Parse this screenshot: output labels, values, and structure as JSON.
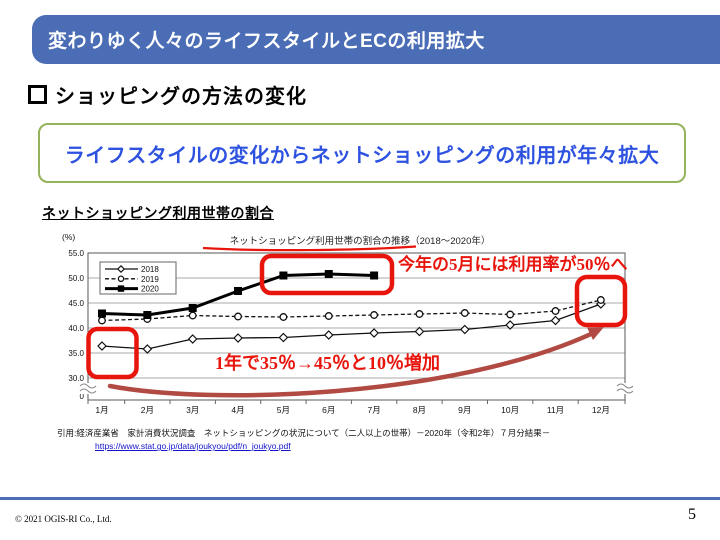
{
  "header": {
    "title": "変わりゆく人々のライフスタイルとECの利用拡大"
  },
  "heading": {
    "text": "ショッピングの方法の変化"
  },
  "callout": {
    "text": "ライフスタイルの変化からネットショッピングの利用が年々拡大"
  },
  "chart_section": {
    "subtitle": "ネットショッピング利用世帯の割合"
  },
  "chart_data": {
    "type": "line",
    "title": "ネットショッピング利用世帯の割合の推移（2018～2020年）",
    "unit_label": "(%)",
    "categories": [
      "1月",
      "2月",
      "3月",
      "4月",
      "5月",
      "6月",
      "7月",
      "8月",
      "9月",
      "10月",
      "11月",
      "12月"
    ],
    "series": [
      {
        "name": "2018",
        "line": "solid",
        "marker": "open-diamond",
        "values": [
          36.4,
          35.8,
          37.8,
          38.0,
          38.1,
          38.6,
          39.0,
          39.3,
          39.7,
          40.6,
          41.5,
          44.8
        ]
      },
      {
        "name": "2019",
        "line": "dashed",
        "marker": "open-circle",
        "values": [
          41.5,
          41.8,
          42.5,
          42.3,
          42.2,
          42.4,
          42.6,
          42.8,
          43.0,
          42.7,
          43.4,
          45.6
        ]
      },
      {
        "name": "2020",
        "line": "solid-thick",
        "marker": "filled-square",
        "values": [
          42.9,
          42.6,
          44.0,
          47.4,
          50.5,
          50.8,
          50.5
        ]
      }
    ],
    "ylim": [
      30,
      55
    ],
    "yticks": [
      "55.0",
      "50.0",
      "45.0",
      "40.0",
      "35.0",
      "30.0"
    ],
    "y_axis_base_label": "0",
    "axis_break": true,
    "grid": true,
    "legend_position": "upper-left"
  },
  "annotations": {
    "may_note": "今年の5月には利用率が50％へ",
    "increase_note": "1年で35％→45％と10％増加"
  },
  "citation": {
    "line1": "引用:経済産業省　家計消費状況調査　ネットショッピングの状況について（二人以上の世帯）－2020年（令和2年）７月分結果－",
    "url": "https://www.stat.go.jp/data/joukyou/pdf/n_joukyo.pdf"
  },
  "footer": {
    "copyright": "© 2021 OGIS-RI Co., Ltd.",
    "page_number": "5"
  },
  "colors": {
    "header_bg": "#4a6db5",
    "callout_border": "#94b35a",
    "callout_text": "#2e52e0",
    "annotation_red": "#e8150d",
    "arrow_red": "#b04a42",
    "link_blue": "#1414cc",
    "footer_line": "#4a6db5"
  }
}
